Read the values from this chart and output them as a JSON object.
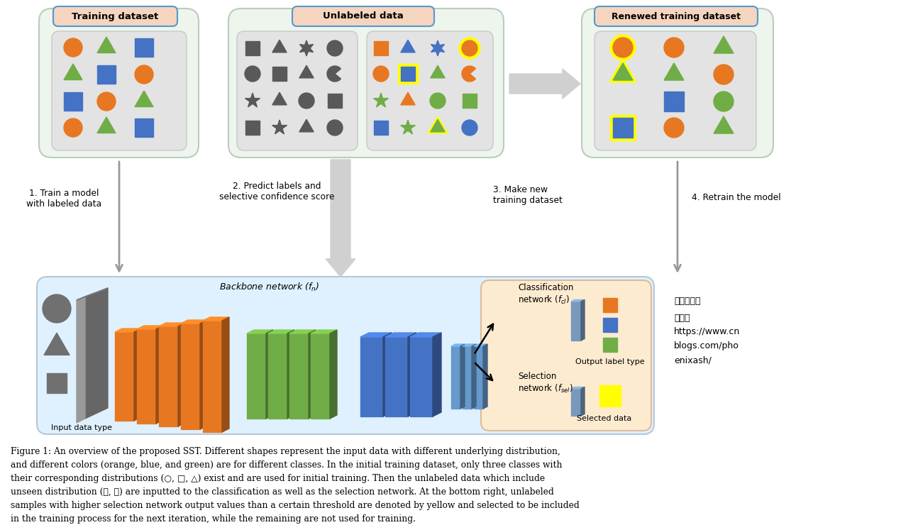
{
  "fig_width": 12.94,
  "fig_height": 7.4,
  "orange": "#E87722",
  "blue": "#4472C4",
  "green": "#70AD47",
  "dark_gray": "#595959",
  "yellow": "#FFFF00",
  "caption_lines": [
    "Figure 1: An overview of the proposed SST. Different shapes represent the input data with different underlying distribution,",
    "and different colors (orange, blue, and green) are for different classes. In the initial training dataset, only three classes with",
    "their corresponding distributions (○, □, △) exist and are used for initial training. Then the unlabeled data which include",
    "unseen distribution (★, ☆) are inputted to the classification as well as the selection network. At the bottom right, unlabeled",
    "samples with higher selection network output values than a certain threshold are denoted by yellow and selected to be included",
    "in the training process for the next iteration, while the remaining are not used for training."
  ]
}
